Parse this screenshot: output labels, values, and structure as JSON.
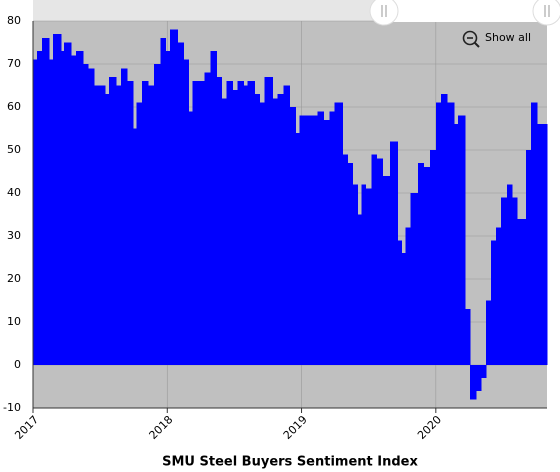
{
  "chart_data": {
    "type": "area",
    "title": "SMU Steel Buyers Sentiment Index",
    "x": [
      2017,
      2017.03,
      2017.067,
      2017.119,
      2017.149,
      2017.209,
      2017.231,
      2017.284,
      2017.321,
      2017.373,
      2017.41,
      2017.455,
      2017.537,
      2017.567,
      2017.619,
      2017.657,
      2017.701,
      2017.746,
      2017.769,
      2017.813,
      2017.858,
      2017.903,
      2017.948,
      2017.985,
      2018.022,
      2018.075,
      2018.119,
      2018.157,
      2018.187,
      2018.276,
      2018.321,
      2018.366,
      2018.403,
      2018.44,
      2018.485,
      2018.522,
      2018.567,
      2018.597,
      2018.649,
      2018.687,
      2018.724,
      2018.784,
      2018.821,
      2018.866,
      2018.91,
      2018.955,
      2018.985,
      2019.119,
      2019.164,
      2019.209,
      2019.246,
      2019.306,
      2019.343,
      2019.381,
      2019.418,
      2019.448,
      2019.478,
      2019.522,
      2019.56,
      2019.604,
      2019.657,
      2019.716,
      2019.746,
      2019.776,
      2019.813,
      2019.866,
      2019.91,
      2019.955,
      2020,
      2020.037,
      2020.082,
      2020.134,
      2020.164,
      2020.216,
      2020.254,
      2020.299,
      2020.336,
      2020.373,
      2020.41,
      2020.448,
      2020.485,
      2020.53,
      2020.567,
      2020.604,
      2020.649,
      2020.672,
      2020.709,
      2020.754,
      2020.784
    ],
    "values": [
      71,
      73,
      76,
      71,
      77,
      73,
      75,
      72,
      73,
      70,
      69,
      65,
      63,
      67,
      65,
      69,
      66,
      55,
      61,
      66,
      65,
      70,
      76,
      73,
      78,
      75,
      71,
      59,
      66,
      68,
      73,
      67,
      62,
      66,
      64,
      66,
      65,
      66,
      63,
      61,
      67,
      62,
      63,
      65,
      60,
      54,
      58,
      59,
      57,
      59,
      61,
      49,
      47,
      42,
      35,
      42,
      41,
      49,
      48,
      44,
      52,
      29,
      26,
      32,
      40,
      47,
      46,
      50,
      61,
      63,
      61,
      56,
      58,
      13,
      -8,
      -6,
      -3,
      15,
      29,
      32,
      39,
      42,
      39,
      34,
      34,
      50,
      61,
      56,
      56
    ],
    "color": "#0000ff",
    "xlim": [
      2017,
      2020.828
    ],
    "xticks": [
      2017,
      2018,
      2019,
      2020
    ],
    "ylim": [
      -10,
      80
    ],
    "yticks": [
      -10,
      0,
      10,
      20,
      30,
      40,
      50,
      60,
      70,
      80
    ],
    "grid": true
  },
  "controls": {
    "reset_zoom": "Show all"
  }
}
